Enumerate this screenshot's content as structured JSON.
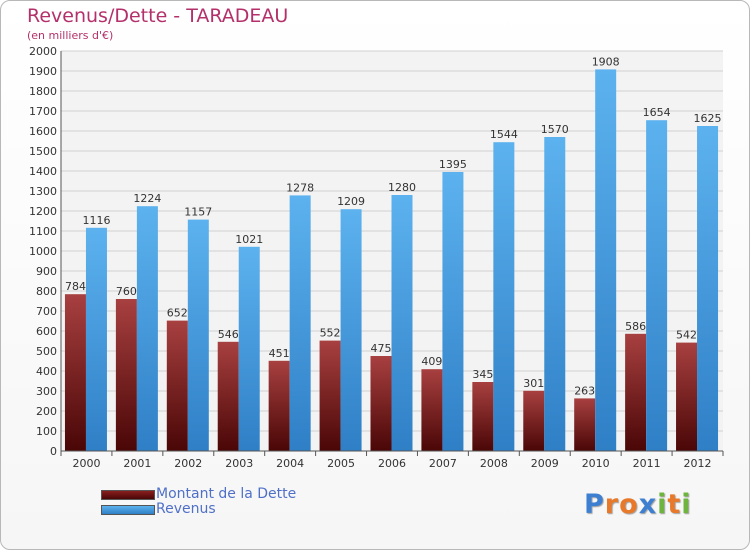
{
  "header": {
    "title": "Revenus/Dette - TARADEAU",
    "subtitle": "(en milliers d'€)"
  },
  "legend": [
    {
      "label": "Montant de la Dette",
      "color": "#6e0d0d"
    },
    {
      "label": "Revenus",
      "color": "#4aa3e6"
    }
  ],
  "logo": {
    "text": "Proxiti",
    "letters": [
      {
        "ch": "P",
        "color": "#3d7fd0"
      },
      {
        "ch": "r",
        "color": "#e8792a"
      },
      {
        "ch": "o",
        "color": "#e8792a"
      },
      {
        "ch": "x",
        "color": "#3d7fd0"
      },
      {
        "ch": "i",
        "color": "#6fb43f"
      },
      {
        "ch": "t",
        "color": "#e8792a"
      },
      {
        "ch": "i",
        "color": "#6fb43f"
      }
    ]
  },
  "chart_data": {
    "type": "bar",
    "title": "Revenus/Dette - TARADEAU",
    "subtitle": "(en milliers d'€)",
    "xlabel": "",
    "ylabel": "",
    "ylim": [
      0,
      2000
    ],
    "ytick_step": 100,
    "grid": true,
    "legend_position": "bottom-left",
    "categories": [
      "2000",
      "2001",
      "2002",
      "2003",
      "2004",
      "2005",
      "2006",
      "2007",
      "2008",
      "2009",
      "2010",
      "2011",
      "2012"
    ],
    "series": [
      {
        "name": "Montant de la Dette",
        "color": "#6e0d0d",
        "values": [
          784,
          760,
          652,
          546,
          451,
          552,
          475,
          409,
          345,
          301,
          263,
          586,
          542
        ]
      },
      {
        "name": "Revenus",
        "color": "#4aa3e6",
        "values": [
          1116,
          1224,
          1157,
          1021,
          1278,
          1209,
          1280,
          1395,
          1544,
          1570,
          1908,
          1654,
          1625
        ]
      }
    ]
  }
}
